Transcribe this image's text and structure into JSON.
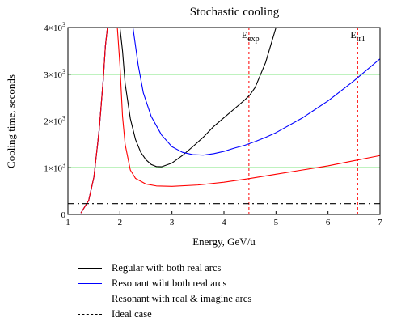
{
  "chart_data": {
    "type": "line",
    "title": "Stochastic cooling",
    "xlabel": "Energy, GeV/u",
    "ylabel": "Cooling time, seconds",
    "xlim": [
      1,
      7
    ],
    "ylim": [
      0,
      4000
    ],
    "x_ticks": [
      {
        "value": 1,
        "label": "1"
      },
      {
        "value": 2,
        "label": "2"
      },
      {
        "value": 3,
        "label": "3"
      },
      {
        "value": 4,
        "label": "4"
      },
      {
        "value": 5,
        "label": "5"
      },
      {
        "value": 6,
        "label": "6"
      },
      {
        "value": 7,
        "label": "7"
      }
    ],
    "y_ticks": [
      {
        "value": 0,
        "label": "0"
      },
      {
        "value": 1000,
        "label": "1×10",
        "exp": "3"
      },
      {
        "value": 2000,
        "label": "2×10",
        "exp": "3"
      },
      {
        "value": 3000,
        "label": "3×10",
        "exp": "3"
      },
      {
        "value": 4000,
        "label": "4×10",
        "exp": "3"
      }
    ],
    "grid": "horizontal, green",
    "series": [
      {
        "name": "Regular with both real arcs",
        "color": "#000000",
        "style": "solid",
        "x": [
          1.25,
          1.4,
          1.5,
          1.6,
          1.68,
          1.72,
          1.76,
          1.8,
          1.85,
          1.9,
          1.92,
          1.95,
          2.0,
          2.05,
          2.1,
          2.2,
          2.3,
          2.4,
          2.5,
          2.6,
          2.7,
          2.8,
          3.0,
          3.2,
          3.4,
          3.6,
          3.8,
          4.0,
          4.2,
          4.4,
          4.5,
          4.6,
          4.8,
          5.0
        ],
        "y": [
          30,
          300,
          800,
          1800,
          2900,
          3600,
          4000,
          4000,
          4000,
          4000,
          4000,
          4000,
          4000,
          3500,
          2800,
          2050,
          1600,
          1330,
          1170,
          1070,
          1025,
          1020,
          1100,
          1260,
          1450,
          1650,
          1880,
          2070,
          2260,
          2450,
          2560,
          2720,
          3250,
          4000
        ]
      },
      {
        "name": "Resonant wiht both real arcs",
        "color": "#0000ff",
        "style": "solid",
        "x": [
          1.25,
          1.4,
          1.5,
          1.6,
          1.68,
          1.72,
          1.76,
          1.85,
          1.92,
          1.94,
          2.25,
          2.35,
          2.45,
          2.6,
          2.8,
          3.0,
          3.2,
          3.4,
          3.6,
          3.8,
          4.0,
          4.2,
          4.4,
          4.6,
          4.8,
          5.0,
          5.5,
          6.0,
          6.5,
          7.0
        ],
        "y": [
          30,
          300,
          800,
          1800,
          2900,
          3600,
          4000,
          4000,
          4000,
          4000,
          4000,
          3200,
          2600,
          2100,
          1700,
          1450,
          1330,
          1280,
          1270,
          1300,
          1350,
          1420,
          1480,
          1560,
          1650,
          1750,
          2060,
          2430,
          2860,
          3330
        ]
      },
      {
        "name": "Resonant with real & imagine arcs",
        "color": "#ff0000",
        "style": "solid",
        "x": [
          1.25,
          1.4,
          1.5,
          1.6,
          1.68,
          1.72,
          1.76,
          1.85,
          1.92,
          1.95,
          2.0,
          2.05,
          2.1,
          2.2,
          2.3,
          2.5,
          2.7,
          3.0,
          3.5,
          4.0,
          4.5,
          5.0,
          5.5,
          6.0,
          6.5,
          7.0
        ],
        "y": [
          30,
          300,
          800,
          1800,
          2900,
          3600,
          4000,
          4000,
          4000,
          4000,
          3200,
          2100,
          1500,
          950,
          770,
          650,
          610,
          600,
          630,
          690,
          770,
          860,
          950,
          1040,
          1150,
          1260
        ]
      },
      {
        "name": "Ideal case",
        "color": "#000000",
        "style": "dashdot",
        "x": [
          1,
          7
        ],
        "y": [
          230,
          230
        ]
      }
    ],
    "vlines": [
      {
        "x": 4.48,
        "label": "E",
        "sub": "exp",
        "color": "#ff0000"
      },
      {
        "x": 6.57,
        "label": "E",
        "sub": "tr1",
        "color": "#ff0000"
      }
    ],
    "legend": "below"
  }
}
